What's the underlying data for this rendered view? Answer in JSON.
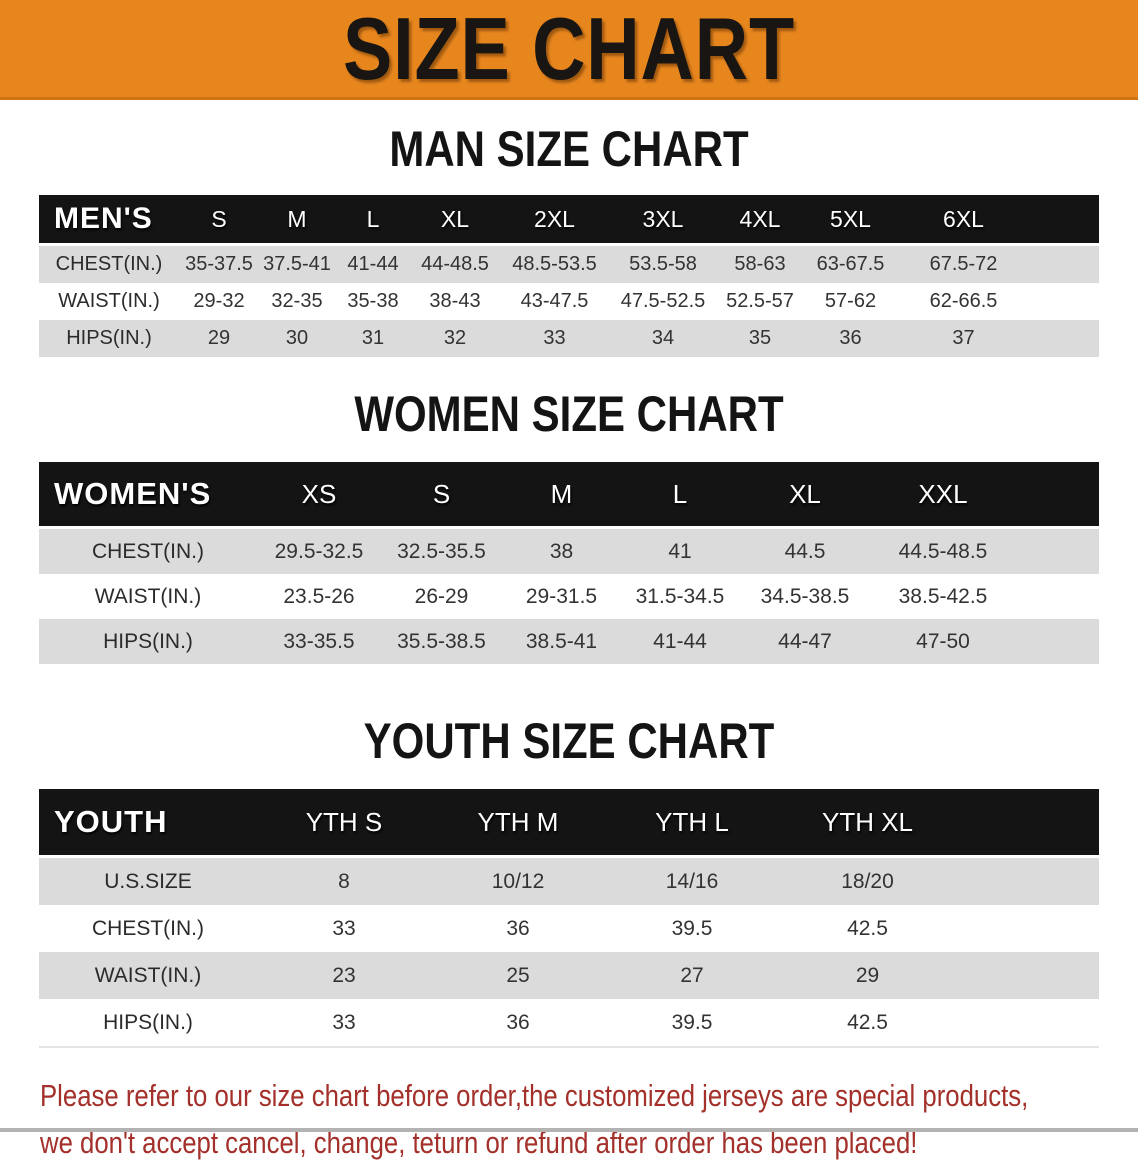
{
  "banner": {
    "title": "SIZE CHART",
    "bg_color": "#E8861E",
    "text_color": "#181512"
  },
  "sections": [
    {
      "heading": "MAN SIZE CHART",
      "table": {
        "header_label": "MEN'S",
        "columns": [
          "S",
          "M",
          "L",
          "XL",
          "2XL",
          "3XL",
          "4XL",
          "5XL",
          "6XL"
        ],
        "rows": [
          {
            "label": "CHEST(IN.)",
            "values": [
              "35-37.5",
              "37.5-41",
              "41-44",
              "44-48.5",
              "48.5-53.5",
              "53.5-58",
              "58-63",
              "63-67.5",
              "67.5-72"
            ]
          },
          {
            "label": "WAIST(IN.)",
            "values": [
              "29-32",
              "32-35",
              "35-38",
              "38-43",
              "43-47.5",
              "47.5-52.5",
              "52.5-57",
              "57-62",
              "62-66.5"
            ]
          },
          {
            "label": "HIPS(IN.)",
            "values": [
              "29",
              "30",
              "31",
              "32",
              "33",
              "34",
              "35",
              "36",
              "37"
            ]
          }
        ]
      }
    },
    {
      "heading": "WOMEN SIZE CHART",
      "table": {
        "header_label": "WOMEN'S",
        "columns": [
          "XS",
          "S",
          "M",
          "L",
          "XL",
          "XXL"
        ],
        "rows": [
          {
            "label": "CHEST(IN.)",
            "values": [
              "29.5-32.5",
              "32.5-35.5",
              "38",
              "41",
              "44.5",
              "44.5-48.5"
            ]
          },
          {
            "label": "WAIST(IN.)",
            "values": [
              "23.5-26",
              "26-29",
              "29-31.5",
              "31.5-34.5",
              "34.5-38.5",
              "38.5-42.5"
            ]
          },
          {
            "label": "HIPS(IN.)",
            "values": [
              "33-35.5",
              "35.5-38.5",
              "38.5-41",
              "41-44",
              "44-47",
              "47-50"
            ]
          }
        ]
      }
    },
    {
      "heading": "YOUTH SIZE CHART",
      "table": {
        "header_label": "YOUTH",
        "columns": [
          "YTH S",
          "YTH M",
          "YTH L",
          "YTH XL"
        ],
        "rows": [
          {
            "label": "U.S.SIZE",
            "values": [
              "8",
              "10/12",
              "14/16",
              "18/20"
            ]
          },
          {
            "label": "CHEST(IN.)",
            "values": [
              "33",
              "36",
              "39.5",
              "42.5"
            ]
          },
          {
            "label": "WAIST(IN.)",
            "values": [
              "23",
              "25",
              "27",
              "29"
            ]
          },
          {
            "label": "HIPS(IN.)",
            "values": [
              "33",
              "36",
              "39.5",
              "42.5"
            ]
          }
        ]
      }
    }
  ],
  "footer": {
    "line1": "Please refer to our size chart before order,the customized jerseys are special products,",
    "line2": "we don't accept cancel, change, teturn or refund after order has been placed!",
    "text_color": "#A3302A"
  }
}
